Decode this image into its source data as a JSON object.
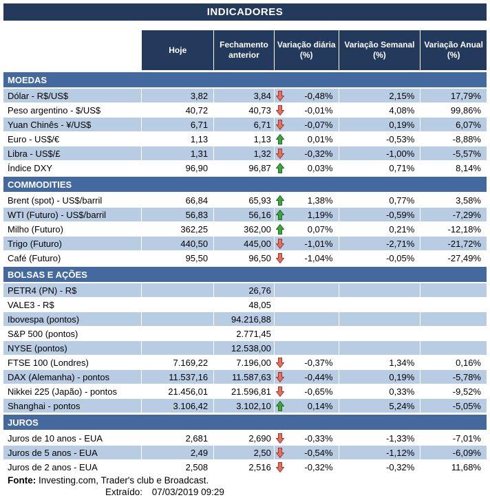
{
  "title": "INDICADORES",
  "columns": [
    "Hoje",
    "Fechamento anterior",
    "Variação diária (%)",
    "Variação Semanal (%)",
    "Variação Anual (%)"
  ],
  "sections": [
    {
      "name": "MOEDAS",
      "rows": [
        {
          "label": "Dólar - R$/US$",
          "hoje": "3,82",
          "fechamento": "3,84",
          "arrow": "down",
          "var_diaria": "-0,48%",
          "var_semanal": "2,15%",
          "var_anual": "17,79%",
          "striped": true
        },
        {
          "label": "Peso argentino - $/US$",
          "hoje": "40,72",
          "fechamento": "40,73",
          "arrow": "down",
          "var_diaria": "-0,01%",
          "var_semanal": "4,08%",
          "var_anual": "99,86%",
          "striped": false
        },
        {
          "label": "Yuan Chinês - ¥/US$",
          "hoje": "6,71",
          "fechamento": "6,71",
          "arrow": "down",
          "var_diaria": "-0,07%",
          "var_semanal": "0,19%",
          "var_anual": "6,07%",
          "striped": true
        },
        {
          "label": "Euro - US$/€",
          "hoje": "1,13",
          "fechamento": "1,13",
          "arrow": "up",
          "var_diaria": "0,01%",
          "var_semanal": "-0,53%",
          "var_anual": "-8,88%",
          "striped": false
        },
        {
          "label": "Libra - US$/£",
          "hoje": "1,31",
          "fechamento": "1,32",
          "arrow": "down",
          "var_diaria": "-0,32%",
          "var_semanal": "-1,00%",
          "var_anual": "-5,57%",
          "striped": true
        },
        {
          "label": "Índice DXY",
          "hoje": "96,90",
          "fechamento": "96,87",
          "arrow": "up",
          "var_diaria": "0,03%",
          "var_semanal": "0,71%",
          "var_anual": "8,14%",
          "striped": false
        }
      ]
    },
    {
      "name": "COMMODITIES",
      "rows": [
        {
          "label": "Brent (spot) - US$/barril",
          "hoje": "66,84",
          "fechamento": "65,93",
          "arrow": "up",
          "var_diaria": "1,38%",
          "var_semanal": "0,77%",
          "var_anual": "3,58%",
          "striped": false
        },
        {
          "label": "WTI (Futuro) - US$/barril",
          "hoje": "56,83",
          "fechamento": "56,16",
          "arrow": "up",
          "var_diaria": "1,19%",
          "var_semanal": "-0,59%",
          "var_anual": "-7,29%",
          "striped": true
        },
        {
          "label": "Milho (Futuro)",
          "hoje": "362,25",
          "fechamento": "362,00",
          "arrow": "up",
          "var_diaria": "0,07%",
          "var_semanal": "0,21%",
          "var_anual": "-12,18%",
          "striped": false
        },
        {
          "label": "Trigo (Futuro)",
          "hoje": "440,50",
          "fechamento": "445,00",
          "arrow": "down",
          "var_diaria": "-1,01%",
          "var_semanal": "-2,71%",
          "var_anual": "-21,72%",
          "striped": true
        },
        {
          "label": "Café (Futuro)",
          "hoje": "95,50",
          "fechamento": "96,50",
          "arrow": "down",
          "var_diaria": "-1,04%",
          "var_semanal": "-0,05%",
          "var_anual": "-27,49%",
          "striped": false
        }
      ]
    },
    {
      "name": "BOLSAS E AÇÕES",
      "rows": [
        {
          "label": "PETR4 (PN) - R$",
          "hoje": "",
          "fechamento": "26,76",
          "arrow": null,
          "var_diaria": "",
          "var_semanal": "",
          "var_anual": "",
          "striped": true
        },
        {
          "label": "VALE3 - R$",
          "hoje": "",
          "fechamento": "48,05",
          "arrow": null,
          "var_diaria": "",
          "var_semanal": "",
          "var_anual": "",
          "striped": false
        },
        {
          "label": "Ibovespa (pontos)",
          "hoje": "",
          "fechamento": "94.216,88",
          "arrow": null,
          "var_diaria": "",
          "var_semanal": "",
          "var_anual": "",
          "striped": true
        },
        {
          "label": "S&P 500 (pontos)",
          "hoje": "",
          "fechamento": "2.771,45",
          "arrow": null,
          "var_diaria": "",
          "var_semanal": "",
          "var_anual": "",
          "striped": false
        },
        {
          "label": "NYSE (pontos)",
          "hoje": "",
          "fechamento": "12.538,00",
          "arrow": null,
          "var_diaria": "",
          "var_semanal": "",
          "var_anual": "",
          "striped": true
        },
        {
          "label": "FTSE 100 (Londres)",
          "hoje": "7.169,22",
          "fechamento": "7.196,00",
          "arrow": "down",
          "var_diaria": "-0,37%",
          "var_semanal": "1,34%",
          "var_anual": "0,16%",
          "striped": false
        },
        {
          "label": "DAX (Alemanha) - pontos",
          "hoje": "11.537,16",
          "fechamento": "11.587,63",
          "arrow": "down",
          "var_diaria": "-0,44%",
          "var_semanal": "0,19%",
          "var_anual": "-5,78%",
          "striped": true
        },
        {
          "label": "Nikkei 225 (Japão) - pontos",
          "hoje": "21.456,01",
          "fechamento": "21.596,81",
          "arrow": "down",
          "var_diaria": "-0,65%",
          "var_semanal": "0,33%",
          "var_anual": "-9,52%",
          "striped": false
        },
        {
          "label": "Shanghai - pontos",
          "hoje": "3.106,42",
          "fechamento": "3.102,10",
          "arrow": "up",
          "var_diaria": "0,14%",
          "var_semanal": "5,24%",
          "var_anual": "-5,05%",
          "striped": true
        }
      ]
    },
    {
      "name": "JUROS",
      "rows": [
        {
          "label": "Juros de 10 anos - EUA",
          "hoje": "2,681",
          "fechamento": "2,690",
          "arrow": "down",
          "var_diaria": "-0,33%",
          "var_semanal": "-1,33%",
          "var_anual": "-7,01%",
          "striped": false
        },
        {
          "label": "Juros de 5 anos - EUA",
          "hoje": "2,49",
          "fechamento": "2,50",
          "arrow": "down",
          "var_diaria": "-0,54%",
          "var_semanal": "-1,12%",
          "var_anual": "-6,09%",
          "striped": true
        },
        {
          "label": "Juros de 2 anos - EUA",
          "hoje": "2,508",
          "fechamento": "2,516",
          "arrow": "down",
          "var_diaria": "-0,32%",
          "var_semanal": "-0,32%",
          "var_anual": "11,68%",
          "striped": false
        }
      ]
    }
  ],
  "footer": {
    "fonte_label": "Fonte:",
    "fonte_text": "Investing.com, Trader's club e Broadcast.",
    "extraido_label": "Extraído:",
    "extraido_value": "07/03/2019 09:29"
  },
  "colors": {
    "header_navy": "#233A5C",
    "section_blue": "#44699E",
    "stripe_blue": "#B8CCE4",
    "up_green_fill": "#3FA43F",
    "up_green_stroke": "#1E6B1E",
    "down_red_fill": "#E4705F",
    "down_red_stroke": "#9E362C"
  }
}
